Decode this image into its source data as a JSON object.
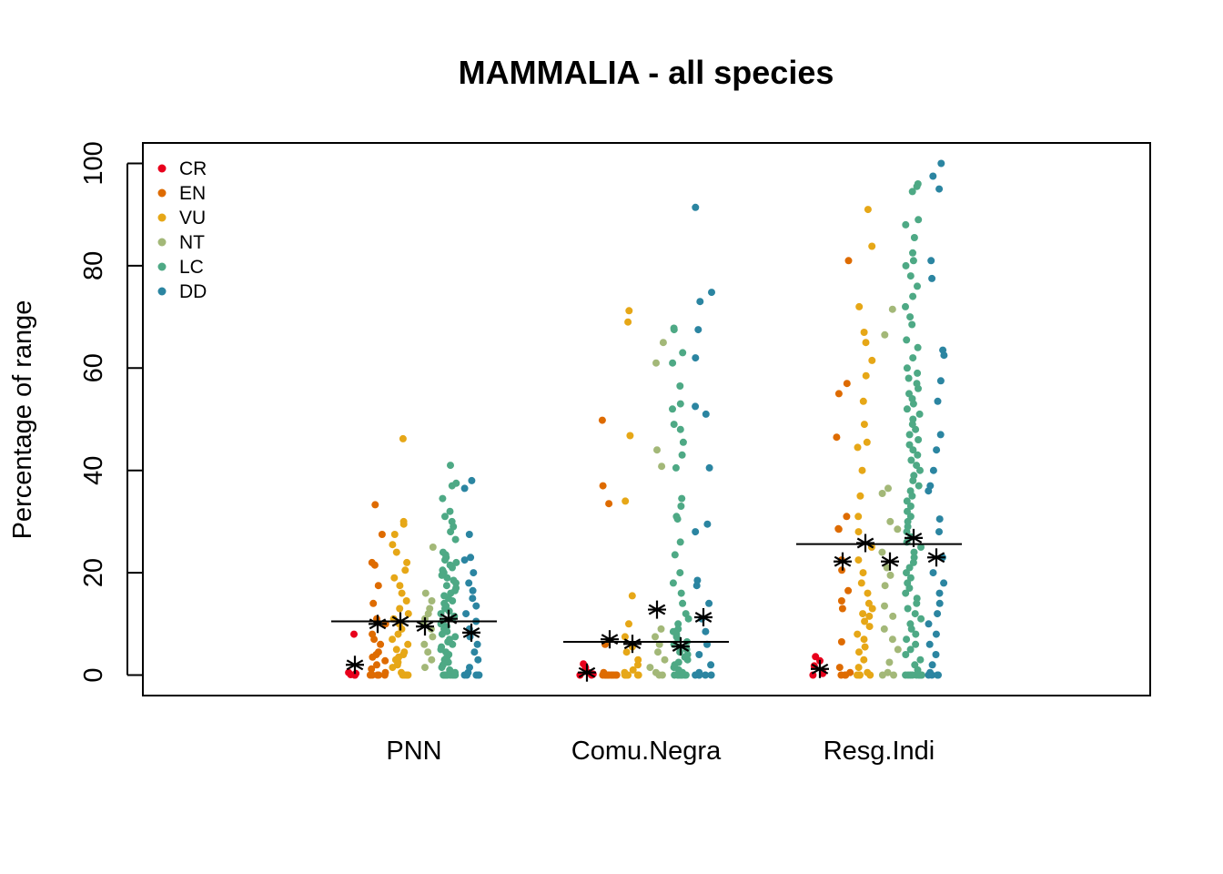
{
  "chart_data": {
    "type": "scatter",
    "title": "MAMMALIA - all species",
    "xlabel": "",
    "ylabel": "Percentage of range",
    "ylim": [
      -4,
      104
    ],
    "yticks": [
      "0",
      "20",
      "40",
      "60",
      "80",
      "100"
    ],
    "ytick_values": [
      0,
      20,
      40,
      60,
      80,
      100
    ],
    "categories": [
      "PNN",
      "Comu.Negra",
      "Resg.Indi"
    ],
    "legend": {
      "position": "top-left",
      "entries": [
        {
          "name": "CR",
          "color": "#e8001c"
        },
        {
          "name": "EN",
          "color": "#de6b00"
        },
        {
          "name": "VU",
          "color": "#e6a717"
        },
        {
          "name": "NT",
          "color": "#a3b878"
        },
        {
          "name": "LC",
          "color": "#4ea985"
        },
        {
          "name": "DD",
          "color": "#2b85a1"
        }
      ]
    },
    "overall_mean": [
      10.5,
      6.5,
      25.6
    ],
    "series": [
      {
        "name": "CR",
        "color": "#e8001c",
        "means": [
          2.0,
          0.5,
          1.2
        ],
        "points": [
          [
            0,
            0.3,
            0.5,
            0.1,
            8.0,
            0
          ],
          [
            0,
            0.2,
            0.5,
            1.5,
            2.2,
            0
          ],
          [
            0.8,
            0,
            2.8,
            3.6,
            0.3,
            1.8
          ]
        ]
      },
      {
        "name": "EN",
        "color": "#de6b00",
        "means": [
          10.0,
          7.0,
          22.2
        ],
        "points": [
          [
            0,
            0,
            0,
            0,
            0,
            0.5,
            1.2,
            2.0,
            2.8,
            3.5,
            4.0,
            4.5,
            6.0,
            7.0,
            8.0,
            10.0,
            11.0,
            14.0,
            17.5,
            21.5,
            22.0,
            27.5,
            33.3
          ],
          [
            0,
            0,
            0,
            0,
            0,
            0,
            0,
            0,
            0,
            0,
            0,
            0.5,
            6.0,
            33.5,
            37.0,
            49.8
          ],
          [
            0,
            0,
            0,
            0.5,
            1.5,
            6.5,
            13.0,
            14.5,
            16.5,
            20.5,
            22.5,
            28.5,
            28.6,
            31.0,
            46.5,
            55.0,
            57.0,
            81.0
          ]
        ]
      },
      {
        "name": "VU",
        "color": "#e6a717",
        "means": [
          10.5,
          6.1,
          25.8
        ],
        "points": [
          [
            0,
            0,
            0,
            0,
            0,
            0.5,
            1.5,
            2.0,
            2.5,
            3.0,
            3.5,
            4.0,
            4.5,
            5.0,
            6.0,
            7.0,
            8.0,
            9.0,
            10.0,
            11.0,
            12.0,
            13.0,
            14.5,
            16.0,
            17.5,
            19.0,
            20.5,
            22.0,
            24.0,
            25.5,
            27.5,
            29.5,
            30.0,
            46.2
          ],
          [
            0,
            0,
            0,
            0,
            0,
            0,
            0.5,
            1.0,
            2.0,
            3.0,
            4.5,
            5.5,
            7.5,
            10.0,
            15.5,
            34.0,
            46.8,
            69.0,
            71.2
          ],
          [
            0,
            0,
            0,
            0,
            0.5,
            1.5,
            3.0,
            4.5,
            5.5,
            7.0,
            8.0,
            9.5,
            10.5,
            11.5,
            12.0,
            13.0,
            14.0,
            16.0,
            18.0,
            20.0,
            22.5,
            25.0,
            28.0,
            31.0,
            35.0,
            40.0,
            44.5,
            45.5,
            49.0,
            53.5,
            58.5,
            61.5,
            65.0,
            67.0,
            72.0,
            83.8,
            91.0
          ]
        ]
      },
      {
        "name": "NT",
        "color": "#a3b878",
        "means": [
          9.5,
          12.8,
          22.2
        ],
        "points": [
          [
            1.5,
            3.0,
            4.5,
            6.0,
            7.5,
            9.0,
            10.0,
            11.0,
            12.0,
            13.0,
            14.5,
            16.0,
            25.0
          ],
          [
            0,
            0,
            0.5,
            1.5,
            3.0,
            4.5,
            6.0,
            7.5,
            9.0,
            40.8,
            44.0,
            61.0,
            65.0
          ],
          [
            0,
            0,
            0.5,
            2.5,
            5.0,
            7.0,
            9.0,
            11.5,
            13.5,
            17.5,
            19.5,
            21.0,
            24.0,
            28.5,
            30.0,
            35.5,
            36.5,
            66.5,
            71.5
          ]
        ]
      },
      {
        "name": "LC",
        "color": "#4ea985",
        "means": [
          11.0,
          5.6,
          26.8
        ],
        "points": [
          [
            0,
            0,
            0,
            0,
            0,
            0,
            0,
            0,
            0,
            0,
            0.5,
            1.0,
            1.5,
            2.0,
            2.5,
            3.0,
            3.5,
            4.0,
            4.5,
            5.0,
            5.5,
            6.0,
            6.5,
            7.0,
            7.5,
            8.0,
            8.5,
            9.0,
            9.5,
            10.0,
            10.5,
            11.0,
            11.5,
            12.0,
            12.5,
            13.0,
            13.5,
            14.0,
            14.5,
            15.0,
            15.5,
            16.0,
            16.5,
            17.0,
            17.5,
            18.0,
            18.5,
            19.0,
            19.5,
            20.0,
            20.5,
            21.0,
            21.5,
            22.0,
            22.5,
            23.0,
            23.5,
            24.0,
            26.5,
            28.0,
            29.0,
            30.0,
            31.0,
            32.0,
            34.5,
            37.0,
            37.5,
            41.0
          ],
          [
            0,
            0,
            0,
            0,
            0,
            0,
            0,
            0,
            0,
            0,
            0.5,
            1.0,
            1.5,
            2.0,
            2.5,
            3.0,
            3.5,
            4.0,
            4.5,
            5.0,
            5.5,
            6.0,
            6.5,
            7.0,
            7.5,
            8.0,
            8.5,
            9.0,
            10.0,
            11.0,
            12.0,
            14.0,
            16.0,
            18.0,
            20.0,
            23.5,
            26.0,
            30.5,
            31.0,
            33.0,
            34.5,
            40.5,
            43.0,
            45.5,
            48.0,
            49.0,
            52.0,
            53.0,
            56.5,
            61.0,
            63.0,
            67.5,
            67.8
          ],
          [
            0,
            0,
            0,
            0,
            0,
            0,
            0,
            0,
            0,
            0,
            1.0,
            2.0,
            3.0,
            4.0,
            5.0,
            6.0,
            7.0,
            8.0,
            9.0,
            10.0,
            11.0,
            12.0,
            13.0,
            14.0,
            15.0,
            16.0,
            17.0,
            18.0,
            19.0,
            20.0,
            21.0,
            22.0,
            23.0,
            24.0,
            25.0,
            26.0,
            27.0,
            28.0,
            29.0,
            30.0,
            31.0,
            32.0,
            33.0,
            34.0,
            35.0,
            36.0,
            37.0,
            38.0,
            39.0,
            40.0,
            41.0,
            42.0,
            43.0,
            44.0,
            45.0,
            46.0,
            47.0,
            48.0,
            49.0,
            50.0,
            51.0,
            52.0,
            53.0,
            54.0,
            55.0,
            56.0,
            57.0,
            58.0,
            59.0,
            60.0,
            62.0,
            64.0,
            65.5,
            68.5,
            70.0,
            72.0,
            74.0,
            76.0,
            78.0,
            80.0,
            81.0,
            82.5,
            85.5,
            88.0,
            89.0,
            94.5,
            95.5,
            96.0
          ]
        ]
      },
      {
        "name": "DD",
        "color": "#2b85a1",
        "means": [
          8.3,
          11.3,
          23.0
        ],
        "points": [
          [
            0,
            0,
            0,
            0,
            0,
            0.5,
            1.5,
            3.0,
            4.5,
            6.0,
            7.5,
            9.0,
            10.5,
            12.0,
            13.5,
            15.0,
            16.5,
            18.0,
            20.0,
            22.5,
            23.0,
            27.5,
            36.5,
            38.0
          ],
          [
            0,
            0,
            0,
            0,
            0,
            0.5,
            2.0,
            4.0,
            6.0,
            8.5,
            11.0,
            14.0,
            17.5,
            18.5,
            28.0,
            29.5,
            40.5,
            51.0,
            52.5,
            62.0,
            67.5,
            73.0,
            74.8,
            91.4
          ],
          [
            0,
            0,
            0,
            0,
            0.5,
            2.0,
            4.0,
            6.0,
            8.0,
            10.0,
            12.0,
            14.0,
            16.0,
            18.0,
            20.0,
            23.0,
            28.0,
            30.5,
            36.0,
            37.0,
            40.0,
            44.0,
            47.0,
            53.5,
            57.5,
            62.5,
            63.5,
            77.5,
            81.0,
            95.0,
            97.5,
            100.0
          ]
        ]
      }
    ]
  }
}
